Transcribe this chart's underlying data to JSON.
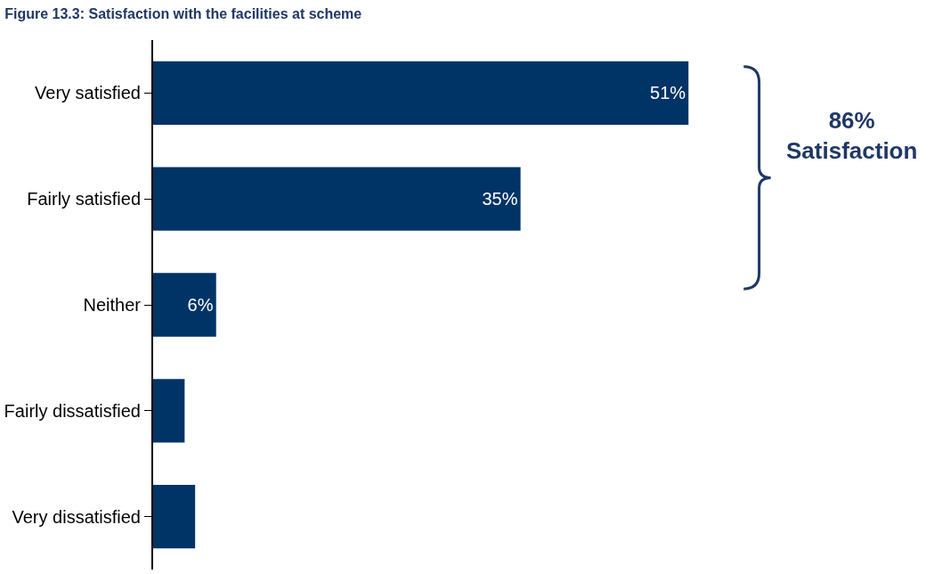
{
  "chart_data": {
    "type": "bar",
    "orientation": "horizontal",
    "title": "Figure 13.3: Satisfaction with the facilities at scheme",
    "categories": [
      "Very satisfied",
      "Fairly satisfied",
      "Neither",
      "Fairly dissatisfied",
      "Very dissatisfied"
    ],
    "values": [
      51,
      35,
      6,
      3,
      4
    ],
    "value_labels": [
      "51%",
      "35%",
      "6%",
      null,
      null
    ],
    "color": "#003366",
    "tick_labels": "y",
    "annotations": [
      "86%\nSatisfaction"
    ]
  }
}
